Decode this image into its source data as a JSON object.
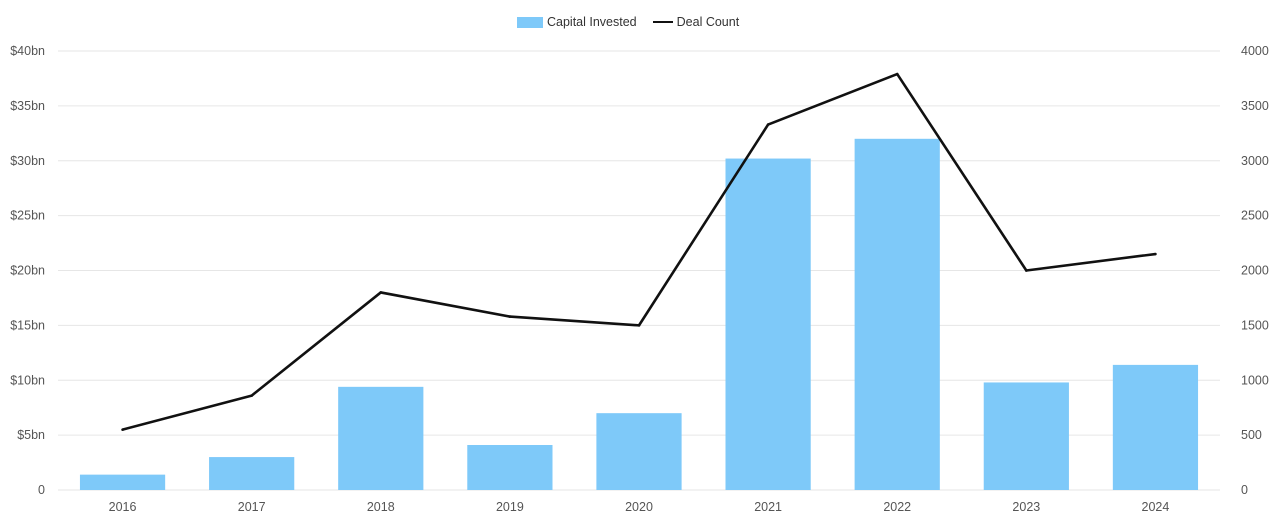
{
  "colors": {
    "bar": "#7ec9f9",
    "line": "#111111",
    "grid": "#e6e6e6"
  },
  "chart_data": {
    "type": "bar",
    "categories": [
      "2016",
      "2017",
      "2018",
      "2019",
      "2020",
      "2021",
      "2022",
      "2023",
      "2024"
    ],
    "series": [
      {
        "name": "Capital Invested",
        "type": "bar",
        "axis": "left",
        "unit": "$bn",
        "values": [
          1.4,
          3.0,
          9.4,
          4.1,
          7.0,
          30.2,
          32.0,
          9.8,
          11.4
        ]
      },
      {
        "name": "Deal Count",
        "type": "line",
        "axis": "right",
        "values": [
          550,
          860,
          1800,
          1580,
          1500,
          3330,
          3790,
          2000,
          2150
        ]
      }
    ],
    "y_left": {
      "min": 0,
      "max": 40,
      "ticks": [
        "0",
        "$5bn",
        "$10bn",
        "$15bn",
        "$20bn",
        "$25bn",
        "$30bn",
        "$35bn",
        "$40bn"
      ]
    },
    "y_right": {
      "min": 0,
      "max": 4000,
      "ticks": [
        "0",
        "500",
        "1000",
        "1500",
        "2000",
        "2500",
        "3000",
        "3500",
        "4000"
      ]
    },
    "legend": {
      "position": "top-center",
      "items": [
        "Capital Invested",
        "Deal Count"
      ]
    },
    "grid": true
  }
}
